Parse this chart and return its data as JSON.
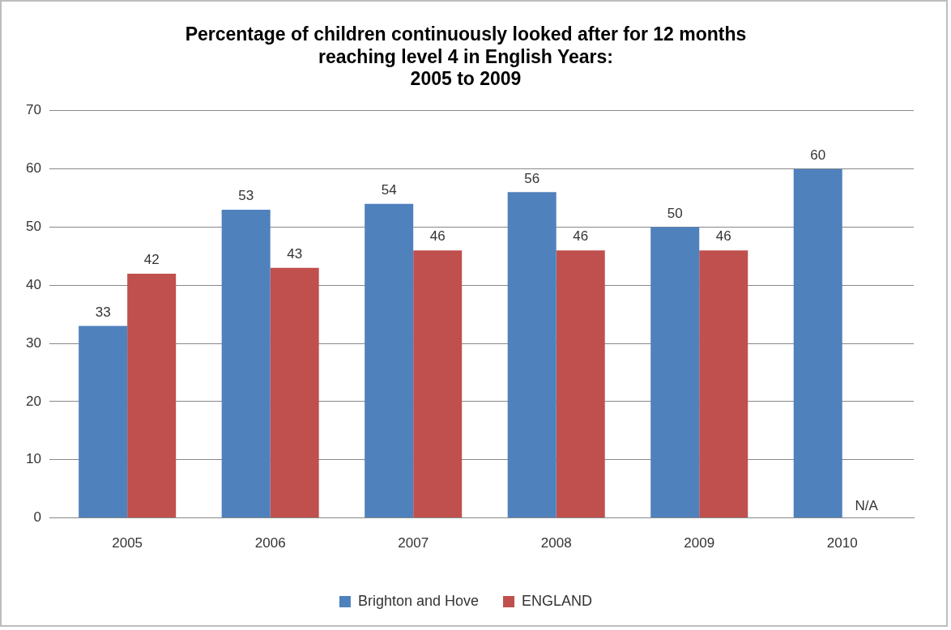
{
  "chart_data": {
    "type": "bar",
    "title": "Percentage of children continuously looked after for 12 months\nreaching level 4 in English Years:\n2005 to 2009",
    "categories": [
      "2005",
      "2006",
      "2007",
      "2008",
      "2009",
      "2010"
    ],
    "series": [
      {
        "name": "Brighton and Hove",
        "color": "#4f81bd",
        "values": [
          33,
          53,
          54,
          56,
          50,
          60
        ],
        "value_labels": [
          "33",
          "53",
          "54",
          "56",
          "50",
          "60"
        ]
      },
      {
        "name": "ENGLAND",
        "color": "#c0504d",
        "values": [
          42,
          43,
          46,
          46,
          46,
          null
        ],
        "value_labels": [
          "42",
          "43",
          "46",
          "46",
          "46",
          "N/A"
        ]
      }
    ],
    "ylim": [
      0,
      70
    ],
    "yticks": [
      0,
      10,
      20,
      30,
      40,
      50,
      60,
      70
    ],
    "grid": "y",
    "legend": "bottom"
  }
}
